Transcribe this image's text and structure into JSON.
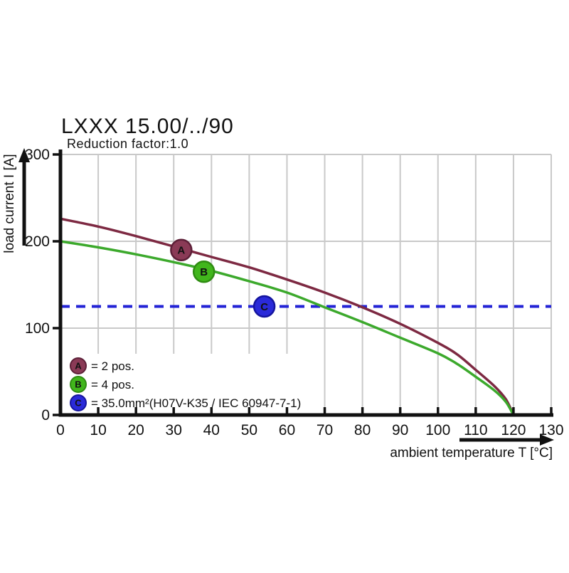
{
  "chart_data": {
    "type": "line",
    "title": "LXXX 15.00/../90",
    "subtitle": "Reduction factor:1.0",
    "xlabel": "ambient temperature T [°C]",
    "ylabel": "load current I [A]",
    "xlim": [
      0,
      130
    ],
    "ylim": [
      0,
      300
    ],
    "x_ticks": [
      0,
      10,
      20,
      30,
      40,
      50,
      60,
      70,
      80,
      90,
      100,
      110,
      120,
      130
    ],
    "y_ticks": [
      0,
      100,
      200,
      300
    ],
    "grid": true,
    "grid_color": "#c9c9c9",
    "axis_color": "#111111",
    "series": [
      {
        "label": "A",
        "name": "2 pos.",
        "color": "#7d2942",
        "marker_fill": "#8a3a56",
        "marker_stroke": "#5d2038",
        "x": [
          0,
          10,
          20,
          30,
          40,
          50,
          60,
          70,
          80,
          90,
          100,
          105,
          110,
          115,
          118,
          120
        ],
        "y": [
          226,
          217,
          206,
          194,
          182,
          170,
          156,
          141,
          124,
          105,
          83,
          70,
          52,
          33,
          18,
          0
        ],
        "marker_at": {
          "x": 32,
          "y": 190
        }
      },
      {
        "label": "B",
        "name": "4 pos.",
        "color": "#3ca92c",
        "marker_fill": "#41b61c",
        "marker_stroke": "#2f8c12",
        "x": [
          0,
          10,
          20,
          30,
          40,
          50,
          60,
          70,
          80,
          90,
          100,
          105,
          110,
          115,
          118,
          120
        ],
        "y": [
          200,
          193,
          185,
          176,
          166,
          154,
          141,
          124,
          107,
          89,
          71,
          59,
          44,
          28,
          15,
          0
        ],
        "marker_at": {
          "x": 38,
          "y": 165
        }
      }
    ],
    "reference_line": {
      "label": "C",
      "value": 125,
      "style": "dashed",
      "color": "#2323d6",
      "marker_fill": "#2a2ad9",
      "marker_stroke": "#15159e",
      "marker_at": {
        "x": 54,
        "y": 125
      }
    },
    "legend": [
      {
        "label": "A",
        "text": "= 2 pos.",
        "fill": "#8a3a56",
        "stroke": "#5d2038"
      },
      {
        "label": "B",
        "text": "= 4 pos.",
        "fill": "#41b61c",
        "stroke": "#2f8c12"
      },
      {
        "label": "C",
        "text": "= 35.0mm²(H07V-K35 / IEC 60947-7-1)",
        "fill": "#2a2ad9",
        "stroke": "#15159e"
      }
    ]
  }
}
